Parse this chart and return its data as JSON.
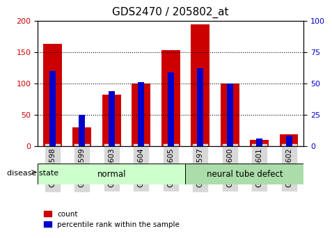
{
  "title": "GDS2470 / 205802_at",
  "categories": [
    "GSM94598",
    "GSM94599",
    "GSM94603",
    "GSM94604",
    "GSM94605",
    "GSM94597",
    "GSM94600",
    "GSM94601",
    "GSM94602"
  ],
  "count_values": [
    163,
    30,
    82,
    100,
    153,
    195,
    100,
    10,
    18
  ],
  "percentile_values": [
    60,
    25,
    44,
    51,
    59,
    62,
    50,
    6,
    8
  ],
  "groups": [
    {
      "label": "normal",
      "start": 0,
      "end": 5
    },
    {
      "label": "neural tube defect",
      "start": 5,
      "end": 9
    }
  ],
  "ylim_left": [
    0,
    200
  ],
  "ylim_right": [
    0,
    100
  ],
  "yticks_left": [
    0,
    50,
    100,
    150,
    200
  ],
  "yticks_right": [
    0,
    25,
    50,
    75,
    100
  ],
  "bar_color_red": "#CC0000",
  "bar_color_blue": "#0000CC",
  "group_colors": [
    "#CCFFCC",
    "#88EE88"
  ],
  "tick_bg_color": "#D8D8D8",
  "grid_color": "#000000",
  "disease_state_label": "disease state",
  "legend_items": [
    "count",
    "percentile rank within the sample"
  ],
  "bar_width": 0.35,
  "bar_spacing": 1.0
}
